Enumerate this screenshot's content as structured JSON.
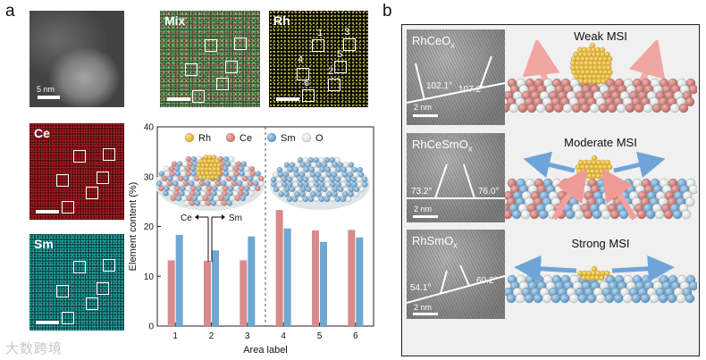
{
  "panel_a": {
    "letter": "a",
    "stem": {
      "scale_label": "5 nm"
    },
    "mix": {
      "label": "Mix"
    },
    "rh": {
      "label": "Rh",
      "area_numbers": [
        "1",
        "2",
        "3",
        "4",
        "5",
        "6"
      ]
    },
    "ce": {
      "label": "Ce"
    },
    "sm": {
      "label": "Sm"
    },
    "colors": {
      "rh": "#e8b830",
      "ce": "#d98a8a",
      "sm": "#6fa8d0",
      "o": "#f2f4f4"
    },
    "arrow_labels": {
      "ce": "Ce",
      "sm": "Sm"
    }
  },
  "chart_data": {
    "type": "bar",
    "categories": [
      "1",
      "2",
      "3",
      "4",
      "5",
      "6"
    ],
    "series": [
      {
        "name": "Ce",
        "values": [
          13.2,
          13.1,
          13.2,
          23.3,
          19.2,
          19.3
        ]
      },
      {
        "name": "Sm",
        "values": [
          18.3,
          15.2,
          18.0,
          19.6,
          16.9,
          17.8
        ]
      }
    ],
    "legend": [
      "Rh",
      "Ce",
      "Sm",
      "O"
    ],
    "legend_placement": "top",
    "xlabel": "Area label",
    "ylabel": "Element content (%)",
    "ylim": [
      0,
      40
    ],
    "yticks": [
      0,
      10,
      20,
      30,
      40
    ],
    "divider_between": [
      "3",
      "4"
    ],
    "grid": false
  },
  "panel_b": {
    "letter": "b",
    "rows": [
      {
        "sample": "RhCeO",
        "sub": "x",
        "angle_left": "102.1°",
        "angle_right": "107.2°",
        "scale": "2 nm",
        "msi": "Weak MSI"
      },
      {
        "sample": "RhCeSmO",
        "sub": "x",
        "angle_left": "73.2°",
        "angle_right": "76.0°",
        "scale": "2 nm",
        "msi": "Moderate MSI"
      },
      {
        "sample": "RhSmO",
        "sub": "x",
        "angle_left": "54.1°",
        "angle_right": "60.2°",
        "scale": "2 nm",
        "msi": "Strong MSI"
      }
    ]
  },
  "watermark": "大数跨境"
}
